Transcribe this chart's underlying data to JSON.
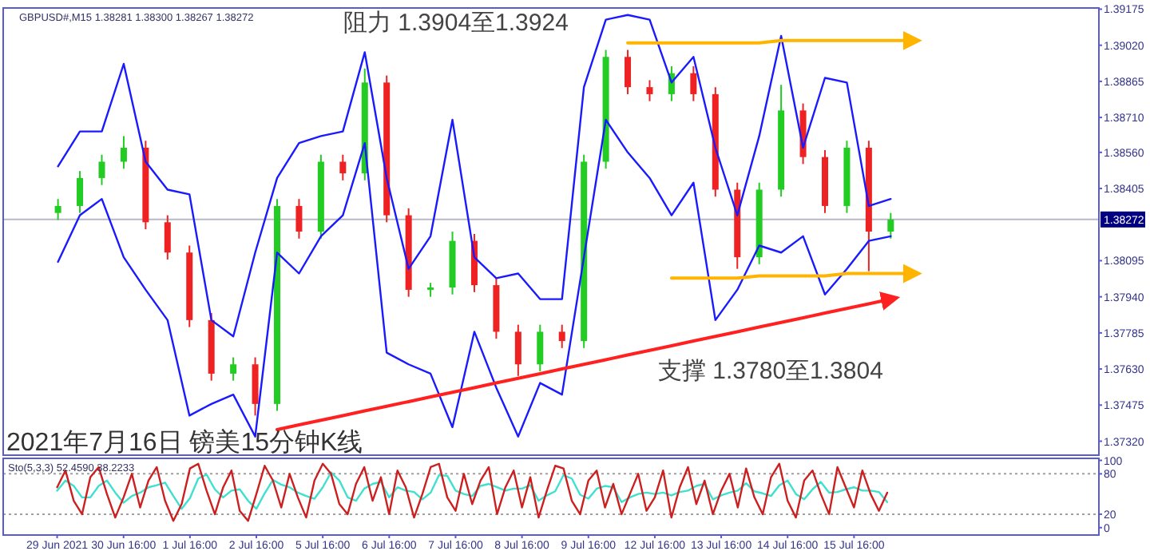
{
  "chart_data": [
    {
      "type": "candlestick",
      "title": "2021年7月16日 镑美15分钟K线",
      "subtitle": "GBPUSD#,M15 1.38281 1.38300 1.38267 1.38272",
      "categories": [
        null,
        null,
        null,
        null,
        null,
        null,
        null,
        null,
        null,
        null,
        null,
        null,
        null,
        null,
        null,
        null,
        null,
        null,
        null,
        null,
        null,
        null,
        null,
        null,
        null,
        null,
        null,
        null,
        null,
        null,
        null,
        null,
        null,
        null,
        null,
        null,
        null,
        null,
        null,
        null,
        null,
        null,
        null,
        null,
        null,
        null,
        null,
        null
      ],
      "ohlc": [
        [
          1.383,
          1.3836,
          1.3827,
          1.3833
        ],
        [
          1.3833,
          1.3848,
          1.383,
          1.3845
        ],
        [
          1.3845,
          1.3855,
          1.3842,
          1.3852
        ],
        [
          1.3852,
          1.3863,
          1.3849,
          1.3858
        ],
        [
          1.3858,
          1.3861,
          1.3823,
          1.3826
        ],
        [
          1.3826,
          1.3829,
          1.381,
          1.3813
        ],
        [
          1.3813,
          1.3816,
          1.3781,
          1.3784
        ],
        [
          1.3784,
          1.3787,
          1.3758,
          1.3761
        ],
        [
          1.3761,
          1.3768,
          1.3758,
          1.3765
        ],
        [
          1.3765,
          1.3768,
          1.3743,
          1.3748
        ],
        [
          1.3748,
          1.3836,
          1.3745,
          1.3833
        ],
        [
          1.3833,
          1.3836,
          1.3819,
          1.3822
        ],
        [
          1.3822,
          1.3855,
          1.3819,
          1.3852
        ],
        [
          1.3852,
          1.3855,
          1.3844,
          1.3847
        ],
        [
          1.3847,
          1.3892,
          1.3844,
          1.3886
        ],
        [
          1.3886,
          1.3889,
          1.3826,
          1.3829
        ],
        [
          1.3829,
          1.3832,
          1.3794,
          1.3797
        ],
        [
          1.3797,
          1.38,
          1.3794,
          1.3798
        ],
        [
          1.3798,
          1.3822,
          1.3795,
          1.3818
        ],
        [
          1.3818,
          1.3821,
          1.3796,
          1.3799
        ],
        [
          1.3799,
          1.3802,
          1.3776,
          1.3779
        ],
        [
          1.3779,
          1.3782,
          1.376,
          1.3765
        ],
        [
          1.3765,
          1.3782,
          1.3762,
          1.3779
        ],
        [
          1.3779,
          1.3782,
          1.3772,
          1.3775
        ],
        [
          1.3775,
          1.3855,
          1.3772,
          1.3852
        ],
        [
          1.3852,
          1.39,
          1.3849,
          1.3897
        ],
        [
          1.3897,
          1.39,
          1.3881,
          1.3884
        ],
        [
          1.3884,
          1.3887,
          1.3878,
          1.3881
        ],
        [
          1.3881,
          1.3893,
          1.3878,
          1.389
        ],
        [
          1.389,
          1.3893,
          1.3878,
          1.3881
        ],
        [
          1.3881,
          1.3884,
          1.3837,
          1.384
        ],
        [
          1.384,
          1.3843,
          1.3806,
          1.3811
        ],
        [
          1.3811,
          1.3843,
          1.3808,
          1.384
        ],
        [
          1.384,
          1.3885,
          1.3837,
          1.3874
        ],
        [
          1.3874,
          1.3877,
          1.3851,
          1.3854
        ],
        [
          1.3854,
          1.3857,
          1.383,
          1.3833
        ],
        [
          1.3833,
          1.3861,
          1.383,
          1.3858
        ],
        [
          1.3858,
          1.3861,
          1.3805,
          1.3822
        ],
        [
          1.3822,
          1.383,
          1.3819,
          1.38272
        ],
        null,
        null,
        null,
        null,
        null,
        null,
        null,
        null,
        null
      ],
      "colors": [
        "#22cc22",
        "#22cc22",
        "#22cc22",
        "#22cc22",
        "#ee2222",
        "#ee2222",
        "#ee2222",
        "#ee2222",
        "#22cc22",
        "#ee2222",
        "#22cc22",
        "#ee2222",
        "#22cc22",
        "#ee2222",
        "#22cc22",
        "#ee2222",
        "#ee2222",
        "#22cc22",
        "#22cc22",
        "#ee2222",
        "#ee2222",
        "#ee2222",
        "#22cc22",
        "#ee2222",
        "#22cc22",
        "#22cc22",
        "#ee2222",
        "#ee2222",
        "#22cc22",
        "#ee2222",
        "#ee2222",
        "#ee2222",
        "#22cc22",
        "#22cc22",
        "#ee2222",
        "#ee2222",
        "#22cc22",
        "#ee2222",
        "#22cc22",
        null,
        null,
        null,
        null,
        null,
        null,
        null,
        null,
        null
      ],
      "ylim": [
        1.3726,
        1.3918
      ],
      "yticks": [
        1.39175,
        {
          "value": 1.3902,
          "label": "1.39020"
        },
        1.38865,
        {
          "value": 1.3871,
          "label": "1.38710"
        },
        {
          "value": 1.3856,
          "label": "1.38560"
        },
        1.38405,
        1.38095,
        {
          "value": 1.3794,
          "label": "1.37940"
        },
        1.37785,
        {
          "value": 1.3763,
          "label": "1.37630"
        },
        1.37475,
        {
          "value": 1.3732,
          "label": "1.37320"
        }
      ],
      "tick_labels": "y",
      "ref_lines": [
        {
          "axis": "y",
          "value": 1.38272,
          "label": "1.38272",
          "color": "#b8b8c8"
        }
      ],
      "series": [
        {
          "type": "line",
          "color": "#1a1aff",
          "values": [
            1.385,
            1.3865,
            1.3865,
            1.3894,
            1.3852,
            1.384,
            1.3838,
            1.3784,
            1.3777,
            1.3813,
            1.3845,
            1.386,
            1.3863,
            1.3865,
            1.3899,
            1.3845,
            1.3806,
            1.382,
            1.387,
            1.3811,
            1.3802,
            1.3804,
            1.3793,
            1.3793,
            1.3884,
            1.3913,
            1.3915,
            1.3913,
            1.3886,
            1.3897,
            1.3858,
            1.3829,
            1.3863,
            1.3906,
            1.3858,
            1.3888,
            1.3886,
            1.3833,
            1.3836,
            null,
            null,
            null,
            null,
            null,
            null,
            null,
            null,
            null
          ]
        },
        {
          "type": "line",
          "color": "#1a1aff",
          "values": [
            1.3809,
            1.3829,
            1.3836,
            1.3811,
            1.3797,
            1.3784,
            1.3743,
            1.3748,
            1.3752,
            1.3734,
            1.3813,
            1.3804,
            1.382,
            1.3829,
            1.386,
            1.377,
            1.3765,
            1.3761,
            1.3738,
            1.3779,
            1.3755,
            1.3734,
            1.3757,
            1.3752,
            1.3811,
            1.387,
            1.3856,
            1.3845,
            1.3829,
            1.3843,
            1.3784,
            1.3797,
            1.3816,
            1.3813,
            1.382,
            1.3795,
            1.3806,
            1.3818,
            1.382,
            null,
            null,
            null,
            null,
            null,
            null,
            null,
            null,
            null
          ]
        },
        {
          "type": "line",
          "color": "#ffb400",
          "values": [
            null,
            null,
            null,
            null,
            null,
            null,
            null,
            null,
            null,
            null,
            null,
            null,
            null,
            null,
            null,
            null,
            null,
            null,
            null,
            null,
            null,
            null,
            null,
            null,
            null,
            null,
            1.3903,
            1.3903,
            1.3903,
            1.3903,
            1.3903,
            1.3903,
            1.3903,
            1.3904,
            1.3904,
            1.3904,
            1.3904,
            1.3904,
            1.3904,
            1.3904,
            null,
            null,
            null,
            null,
            null,
            null,
            null,
            null
          ]
        },
        {
          "type": "line",
          "color": "#ffb400",
          "values": [
            null,
            null,
            null,
            null,
            null,
            null,
            null,
            null,
            null,
            null,
            null,
            null,
            null,
            null,
            null,
            null,
            null,
            null,
            null,
            null,
            null,
            null,
            null,
            null,
            null,
            null,
            null,
            null,
            1.3802,
            1.3802,
            1.3802,
            1.3802,
            1.3803,
            1.3803,
            1.3803,
            1.3803,
            1.3804,
            1.3804,
            1.3804,
            1.3804,
            null,
            null,
            null,
            null,
            null,
            null,
            null,
            null
          ]
        },
        {
          "type": "line",
          "color": "#ff2020",
          "values": [
            null,
            null,
            null,
            null,
            null,
            null,
            null,
            null,
            null,
            null,
            1.3737,
            1.3739,
            1.3741,
            1.3743,
            1.3745,
            1.3747,
            1.3749,
            1.3751,
            1.3753,
            1.3755,
            1.3757,
            1.3759,
            1.3761,
            1.3763,
            1.3765,
            1.3767,
            1.3769,
            1.3771,
            1.3773,
            1.3775,
            1.3777,
            1.3779,
            1.3781,
            1.3783,
            1.3785,
            1.3787,
            1.3789,
            1.3791,
            1.3793,
            null,
            null,
            null,
            null,
            null,
            null,
            null,
            null,
            null
          ]
        }
      ],
      "annotations": [
        "阻力 1.3904至1.3924",
        "支撑 1.3780至1.3804"
      ]
    },
    {
      "type": "line",
      "title": "Sto(5,3,3) 52.4590 38.2233",
      "categories": [
        "29 Jun 2021",
        null,
        null,
        null,
        null,
        null,
        null,
        null,
        "30 Jun 16:00",
        null,
        null,
        null,
        null,
        null,
        null,
        null,
        "1 Jul 16:00",
        null,
        null,
        null,
        null,
        null,
        null,
        null,
        "2 Jul 16:00",
        null,
        null,
        null,
        null,
        null,
        null,
        null,
        "5 Jul 16:00",
        null,
        null,
        null,
        null,
        null,
        null,
        null,
        "6 Jul 16:00",
        null,
        null,
        null,
        null,
        null,
        null,
        null,
        "7 Jul 16:00",
        null,
        null,
        null,
        null,
        null,
        null,
        null,
        "8 Jul 16:00",
        null,
        null,
        null,
        null,
        null,
        null,
        null,
        "9 Jul 16:00",
        null,
        null,
        null,
        null,
        null,
        null,
        null,
        "12 Jul 16:00",
        null,
        null,
        null,
        null,
        null,
        null,
        null,
        "13 Jul 16:00",
        null,
        null,
        null,
        null,
        null,
        null,
        null,
        "14 Jul 16:00",
        null,
        null,
        null,
        null,
        null,
        null,
        null,
        "15 Jul 16:00",
        null,
        null,
        null,
        null,
        null,
        null,
        null,
        null,
        null,
        null,
        null,
        null,
        null,
        null,
        null,
        null,
        null,
        null,
        null,
        null,
        null,
        null,
        null,
        null,
        null,
        null,
        null,
        null,
        null
      ],
      "ylim": [
        -11,
        103
      ],
      "yticks": [
        100,
        80,
        20,
        0
      ],
      "ref_lines": [
        {
          "axis": "y",
          "value": 80,
          "color": "#a0a0a0",
          "line_style": "dotted"
        },
        {
          "axis": "y",
          "value": 20,
          "color": "#a0a0a0",
          "line_style": "dotted"
        }
      ],
      "series": [
        {
          "color": "#40e0d0",
          "values": [
            55,
            70,
            62,
            45,
            45,
            62,
            70,
            52,
            37,
            47,
            52,
            60,
            63,
            67,
            47,
            28,
            44,
            73,
            79,
            57,
            45,
            55,
            57,
            40,
            28,
            51,
            71,
            64,
            60,
            52,
            47,
            43,
            60,
            82,
            70,
            45,
            40,
            58,
            65,
            68,
            45,
            60,
            55,
            53,
            42,
            52,
            78,
            77,
            55,
            50,
            47,
            62,
            65,
            60,
            55,
            58,
            58,
            63,
            40,
            48,
            54,
            78,
            73,
            49,
            43,
            58,
            62,
            60,
            38,
            45,
            50,
            52,
            50,
            52,
            48,
            53,
            55,
            62,
            65,
            42,
            48,
            52,
            55,
            66,
            54,
            51,
            47,
            63,
            70,
            50,
            42,
            57,
            68,
            52,
            53,
            57,
            60,
            55,
            55,
            53,
            38,
            null,
            null,
            null,
            null,
            null,
            null,
            null,
            null,
            null,
            null,
            null,
            null,
            null,
            null,
            null,
            null,
            null,
            null,
            null,
            null,
            null,
            null,
            null,
            null,
            null
          ]
        },
        {
          "color": "#cc2020",
          "values": [
            60,
            85,
            40,
            20,
            75,
            90,
            50,
            15,
            45,
            80,
            30,
            70,
            90,
            40,
            10,
            35,
            88,
            95,
            55,
            20,
            60,
            85,
            25,
            10,
            50,
            92,
            70,
            30,
            80,
            45,
            15,
            70,
            95,
            80,
            35,
            20,
            65,
            90,
            40,
            75,
            20,
            85,
            60,
            15,
            50,
            90,
            95,
            45,
            25,
            80,
            35,
            70,
            90,
            20,
            60,
            85,
            30,
            75,
            15,
            55,
            92,
            88,
            40,
            20,
            70,
            85,
            30,
            65,
            20,
            50,
            80,
            25,
            45,
            85,
            15,
            60,
            90,
            35,
            70,
            20,
            55,
            80,
            30,
            88,
            45,
            20,
            75,
            95,
            40,
            15,
            70,
            85,
            50,
            20,
            90,
            60,
            30,
            85,
            50,
            25,
            52,
            null,
            null,
            null,
            null,
            null,
            null,
            null,
            null,
            null,
            null,
            null,
            null,
            null,
            null,
            null,
            null,
            null,
            null,
            null,
            null,
            null,
            null,
            null,
            null,
            null
          ]
        }
      ]
    }
  ]
}
